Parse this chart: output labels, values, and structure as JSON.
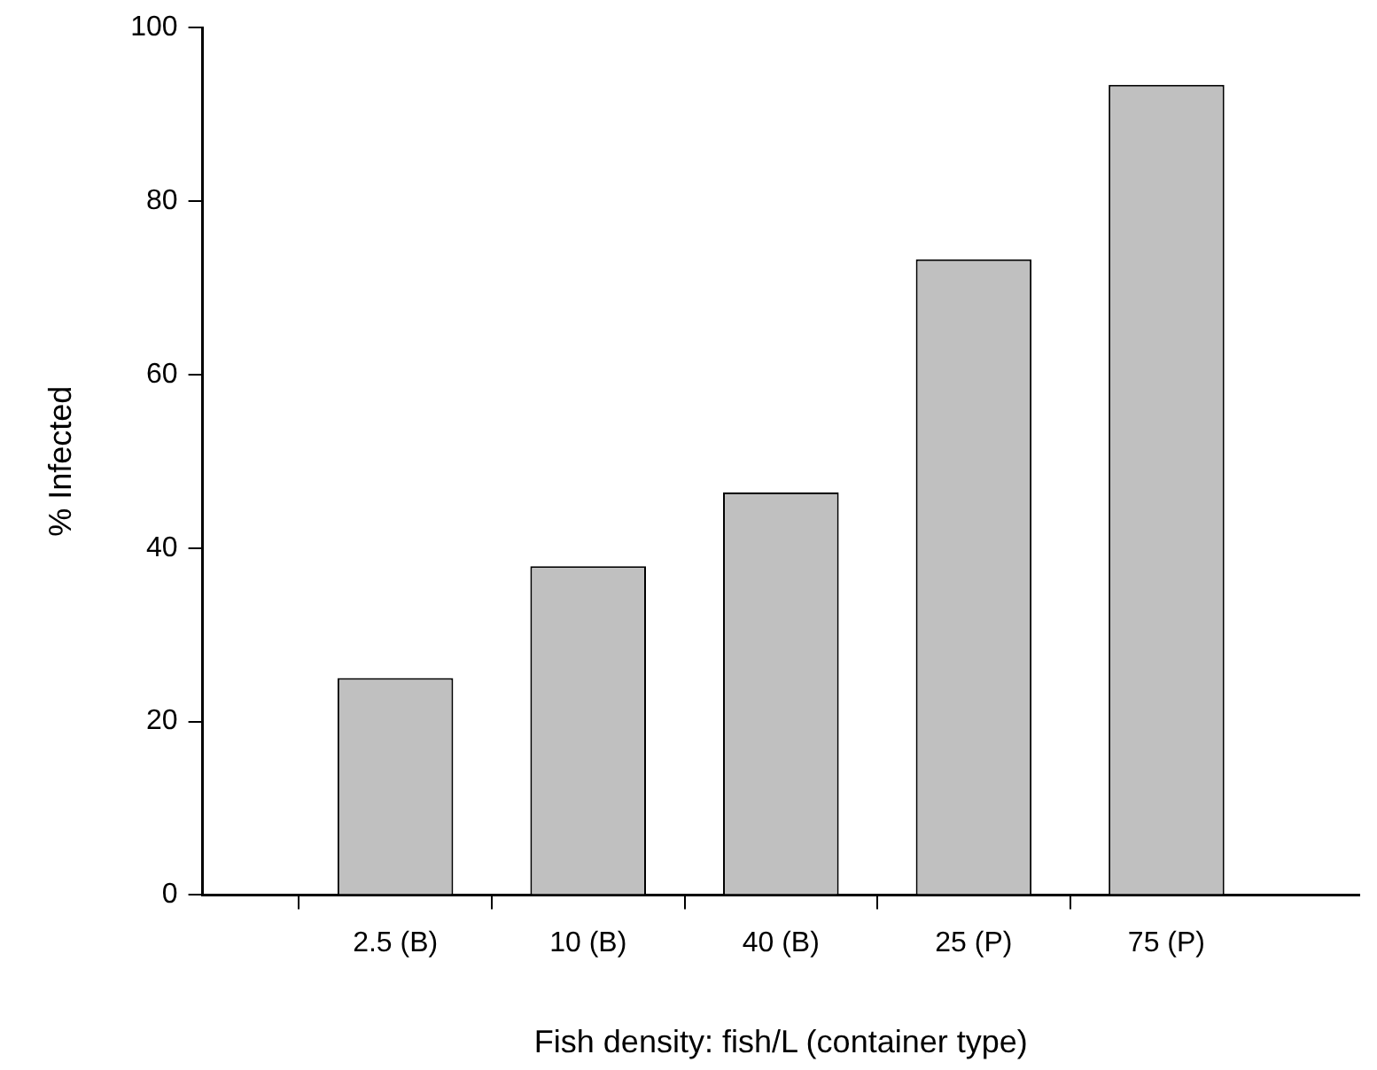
{
  "chart_data": {
    "type": "bar",
    "xlabel": "Fish density: fish/L (container type)",
    "ylabel": "% Infected",
    "categories": [
      null,
      "2.5 (B)",
      "10 (B)",
      "40 (B)",
      "25 (P)",
      "75 (P)",
      null
    ],
    "values": [
      null,
      25.0,
      37.9,
      46.4,
      73.3,
      93.4,
      null
    ],
    "color": "#c0c0c0",
    "ylim": [
      0,
      100
    ],
    "yticks": [
      0,
      20,
      40,
      60,
      80,
      100
    ],
    "grid": false,
    "legend": false
  }
}
